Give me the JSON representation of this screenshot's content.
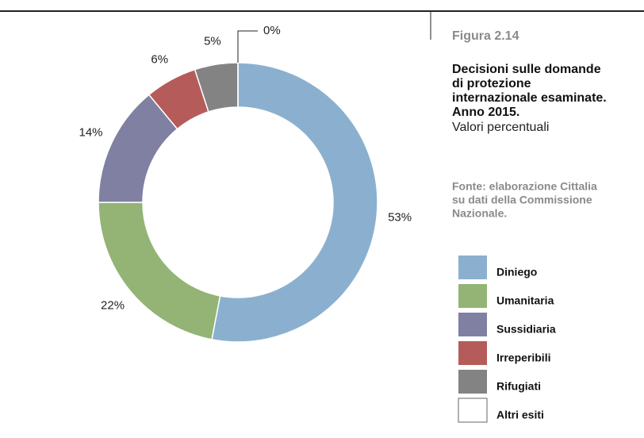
{
  "chart_data": {
    "type": "donut",
    "figure_label": "Figura 2.14",
    "title": [
      "Decisioni sulle domande",
      "di protezione",
      "internazionale esaminate.",
      "Anno 2015."
    ],
    "subtitle": "Valori percentuali",
    "source": [
      "Fonte: elaborazione Cittalia",
      "su dati della Commissione",
      "Nazionale."
    ],
    "categories": [
      "Diniego",
      "Umanitaria",
      "Sussidiaria",
      "Irreperibili",
      "Rifugiati",
      "Altri esiti"
    ],
    "values": [
      53,
      22,
      14,
      6,
      5,
      0
    ],
    "value_labels": [
      "53%",
      "22%",
      "14%",
      "6%",
      "5%",
      "0%"
    ],
    "colors": [
      "#8bb0cf",
      "#93b475",
      "#8080a2",
      "#b55c5a",
      "#838384",
      "#ffffff"
    ]
  }
}
